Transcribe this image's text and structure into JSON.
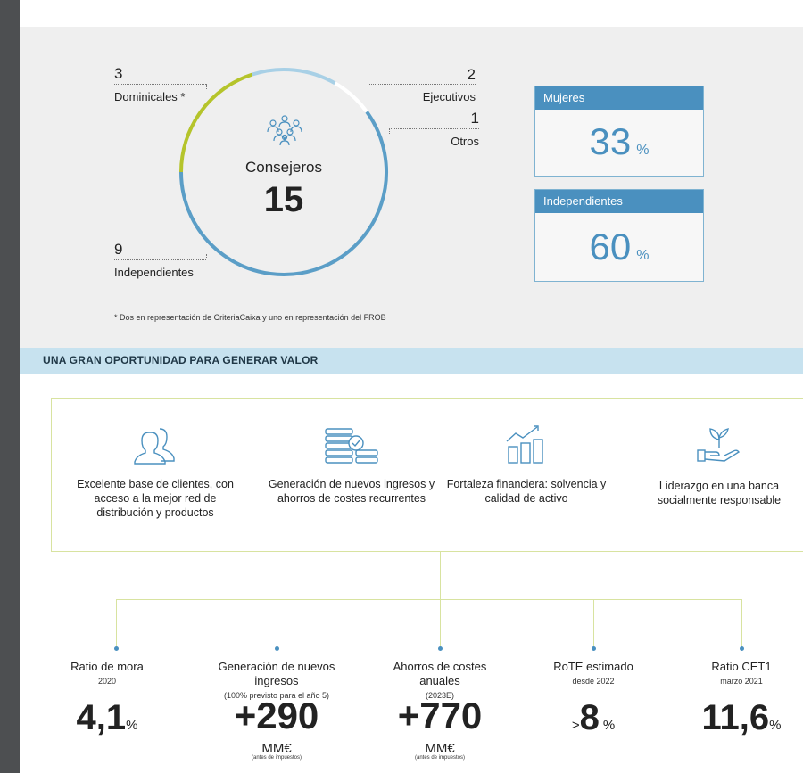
{
  "board": {
    "dominicales": {
      "count": "3",
      "label": "Dominicales *"
    },
    "ejecutivos": {
      "count": "2",
      "label": "Ejecutivos"
    },
    "otros": {
      "count": "1",
      "label": "Otros"
    },
    "independientes": {
      "count": "9",
      "label": "Independientes"
    },
    "center_label": "Consejeros",
    "center_total": "15",
    "colors": {
      "dominicales": "#b5c42b",
      "ejecutivos": "#a8d0e6",
      "otros": "#ffffff",
      "independientes": "#5b9ec7"
    },
    "footnote": "* Dos en representación de CriteriaCaixa y uno en representación del FROB"
  },
  "stats": [
    {
      "label": "Mujeres",
      "value": "33",
      "unit": "%"
    },
    {
      "label": "Independientes",
      "value": "60",
      "unit": "%"
    }
  ],
  "banner": "UNA GRAN OPORTUNIDAD PARA GENERAR VALOR",
  "pillars": [
    {
      "icon": "people-icon",
      "text": "Excelente base de clientes, con acceso a la mejor red de distribución y productos"
    },
    {
      "icon": "coins-icon",
      "text": "Generación de nuevos ingresos y ahorros de costes recurrentes"
    },
    {
      "icon": "growth-chart-icon",
      "text": "Fortaleza financiera: solvencia y calidad de activo"
    },
    {
      "icon": "hand-plant-icon",
      "text": "Liderazgo en una banca socialmente responsable"
    }
  ],
  "metrics": [
    {
      "title": "Ratio de mora",
      "sub": "2020",
      "prefix": "",
      "value": "4,1",
      "unit": "%",
      "unit2": "",
      "note": ""
    },
    {
      "title": "Generación de nuevos ingresos",
      "sub": "(100% previsto para el año 5)",
      "prefix": "",
      "value": "+290",
      "unit": "",
      "unit2": "MM€",
      "note": "(antes de impuestos)"
    },
    {
      "title": "Ahorros de costes anuales",
      "sub": "(2023E)",
      "prefix": "",
      "value": "+770",
      "unit": "",
      "unit2": "MM€",
      "note": "(antes de impuestos)"
    },
    {
      "title": "RoTE estimado",
      "sub": "desde 2022",
      "prefix": ">",
      "value": "8",
      "unit": "%",
      "unit2": "",
      "note": ""
    },
    {
      "title": "Ratio CET1",
      "sub": "marzo 2021",
      "prefix": "",
      "value": "11,6",
      "unit": "%",
      "unit2": "",
      "note": ""
    }
  ],
  "accent": "#4a90bf"
}
